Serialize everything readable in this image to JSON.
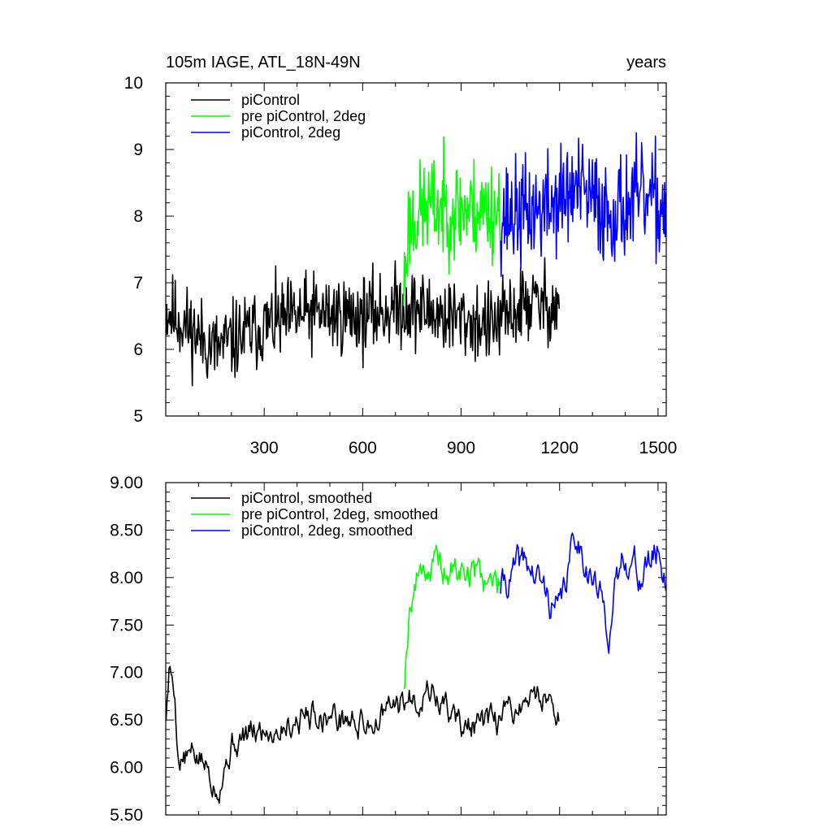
{
  "chart_data": [
    {
      "type": "line",
      "title_left": "105m IAGE, ATL_18N-49N",
      "title_right": "years",
      "xlabel": "",
      "ylabel": "",
      "xlim": [
        0,
        1525
      ],
      "ylim": [
        5,
        10
      ],
      "xticks": [
        300,
        600,
        900,
        1200,
        1500
      ],
      "xtick_labels": [
        "300",
        "600",
        "900",
        "1200",
        "1500"
      ],
      "yticks": [
        5,
        6,
        7,
        8,
        9,
        10
      ],
      "ytick_labels": [
        "5",
        "6",
        "7",
        "8",
        "9",
        "10"
      ],
      "legend_position": "top-left",
      "grid": false,
      "series": [
        {
          "name": "piControl",
          "color": "#000000",
          "x_start": 1,
          "x_end": 1200,
          "mode": "raw",
          "anchors": [
            [
              1,
              6.6
            ],
            [
              150,
              6.0
            ],
            [
              300,
              6.35
            ],
            [
              450,
              6.55
            ],
            [
              600,
              6.5
            ],
            [
              720,
              6.65
            ],
            [
              900,
              6.45
            ],
            [
              1000,
              6.35
            ],
            [
              1100,
              6.7
            ],
            [
              1200,
              6.65
            ]
          ],
          "spread": 0.3,
          "seed": 11
        },
        {
          "name": "pre piControl, 2deg",
          "color": "#00ff00",
          "x_start": 725,
          "x_end": 1020,
          "mode": "raw",
          "anchors": [
            [
              725,
              6.9
            ],
            [
              740,
              7.9
            ],
            [
              800,
              8.15
            ],
            [
              900,
              8.1
            ],
            [
              1020,
              8.1
            ]
          ],
          "spread": 0.38,
          "seed": 23
        },
        {
          "name": "piControl, 2deg",
          "color": "#0000ff",
          "x_start": 1020,
          "x_end": 1525,
          "mode": "raw",
          "anchors": [
            [
              1020,
              8.0
            ],
            [
              1150,
              8.1
            ],
            [
              1250,
              8.4
            ],
            [
              1350,
              8.05
            ],
            [
              1450,
              8.25
            ],
            [
              1525,
              8.1
            ]
          ],
          "spread": 0.4,
          "seed": 37
        }
      ]
    },
    {
      "type": "line",
      "xlabel": "",
      "ylabel": "",
      "xlim": [
        0,
        1525
      ],
      "ylim": [
        5.5,
        9.0
      ],
      "xticks": [
        300,
        600,
        900,
        1200,
        1500
      ],
      "xtick_labels": [],
      "yticks": [
        5.5,
        6.0,
        6.5,
        7.0,
        7.5,
        8.0,
        8.5,
        9.0
      ],
      "ytick_labels": [
        "5.50",
        "6.00",
        "6.50",
        "7.00",
        "7.50",
        "8.00",
        "8.50",
        "9.00"
      ],
      "legend_position": "top-left",
      "grid": false,
      "series": [
        {
          "name": "piControl, smoothed",
          "color": "#000000",
          "x_start": 1,
          "x_end": 1200,
          "mode": "smooth",
          "anchors": [
            [
              1,
              6.55
            ],
            [
              10,
              7.0
            ],
            [
              25,
              6.9
            ],
            [
              40,
              6.1
            ],
            [
              100,
              6.1
            ],
            [
              160,
              5.85
            ],
            [
              200,
              6.25
            ],
            [
              300,
              6.4
            ],
            [
              450,
              6.6
            ],
            [
              600,
              6.45
            ],
            [
              720,
              6.65
            ],
            [
              800,
              6.85
            ],
            [
              900,
              6.45
            ],
            [
              1000,
              6.4
            ],
            [
              1050,
              6.6
            ],
            [
              1100,
              6.7
            ],
            [
              1150,
              6.8
            ],
            [
              1200,
              6.6
            ]
          ],
          "spread": 0.17,
          "seed": 5
        },
        {
          "name": "pre piControl, 2deg, smoothed",
          "color": "#00ff00",
          "x_start": 725,
          "x_end": 1020,
          "mode": "smooth",
          "anchors": [
            [
              725,
              6.9
            ],
            [
              745,
              7.8
            ],
            [
              780,
              8.15
            ],
            [
              850,
              8.05
            ],
            [
              950,
              8.05
            ],
            [
              1020,
              7.9
            ]
          ],
          "spread": 0.2,
          "seed": 19
        },
        {
          "name": "piControl, 2deg, smoothed",
          "color": "#0000ff",
          "x_start": 1020,
          "x_end": 1525,
          "mode": "smooth",
          "anchors": [
            [
              1020,
              7.9
            ],
            [
              1100,
              8.15
            ],
            [
              1200,
              7.6
            ],
            [
              1250,
              8.5
            ],
            [
              1300,
              8.0
            ],
            [
              1350,
              7.5
            ],
            [
              1400,
              8.3
            ],
            [
              1450,
              8.0
            ],
            [
              1500,
              8.3
            ],
            [
              1525,
              8.0
            ]
          ],
          "spread": 0.2,
          "seed": 41
        }
      ]
    }
  ]
}
